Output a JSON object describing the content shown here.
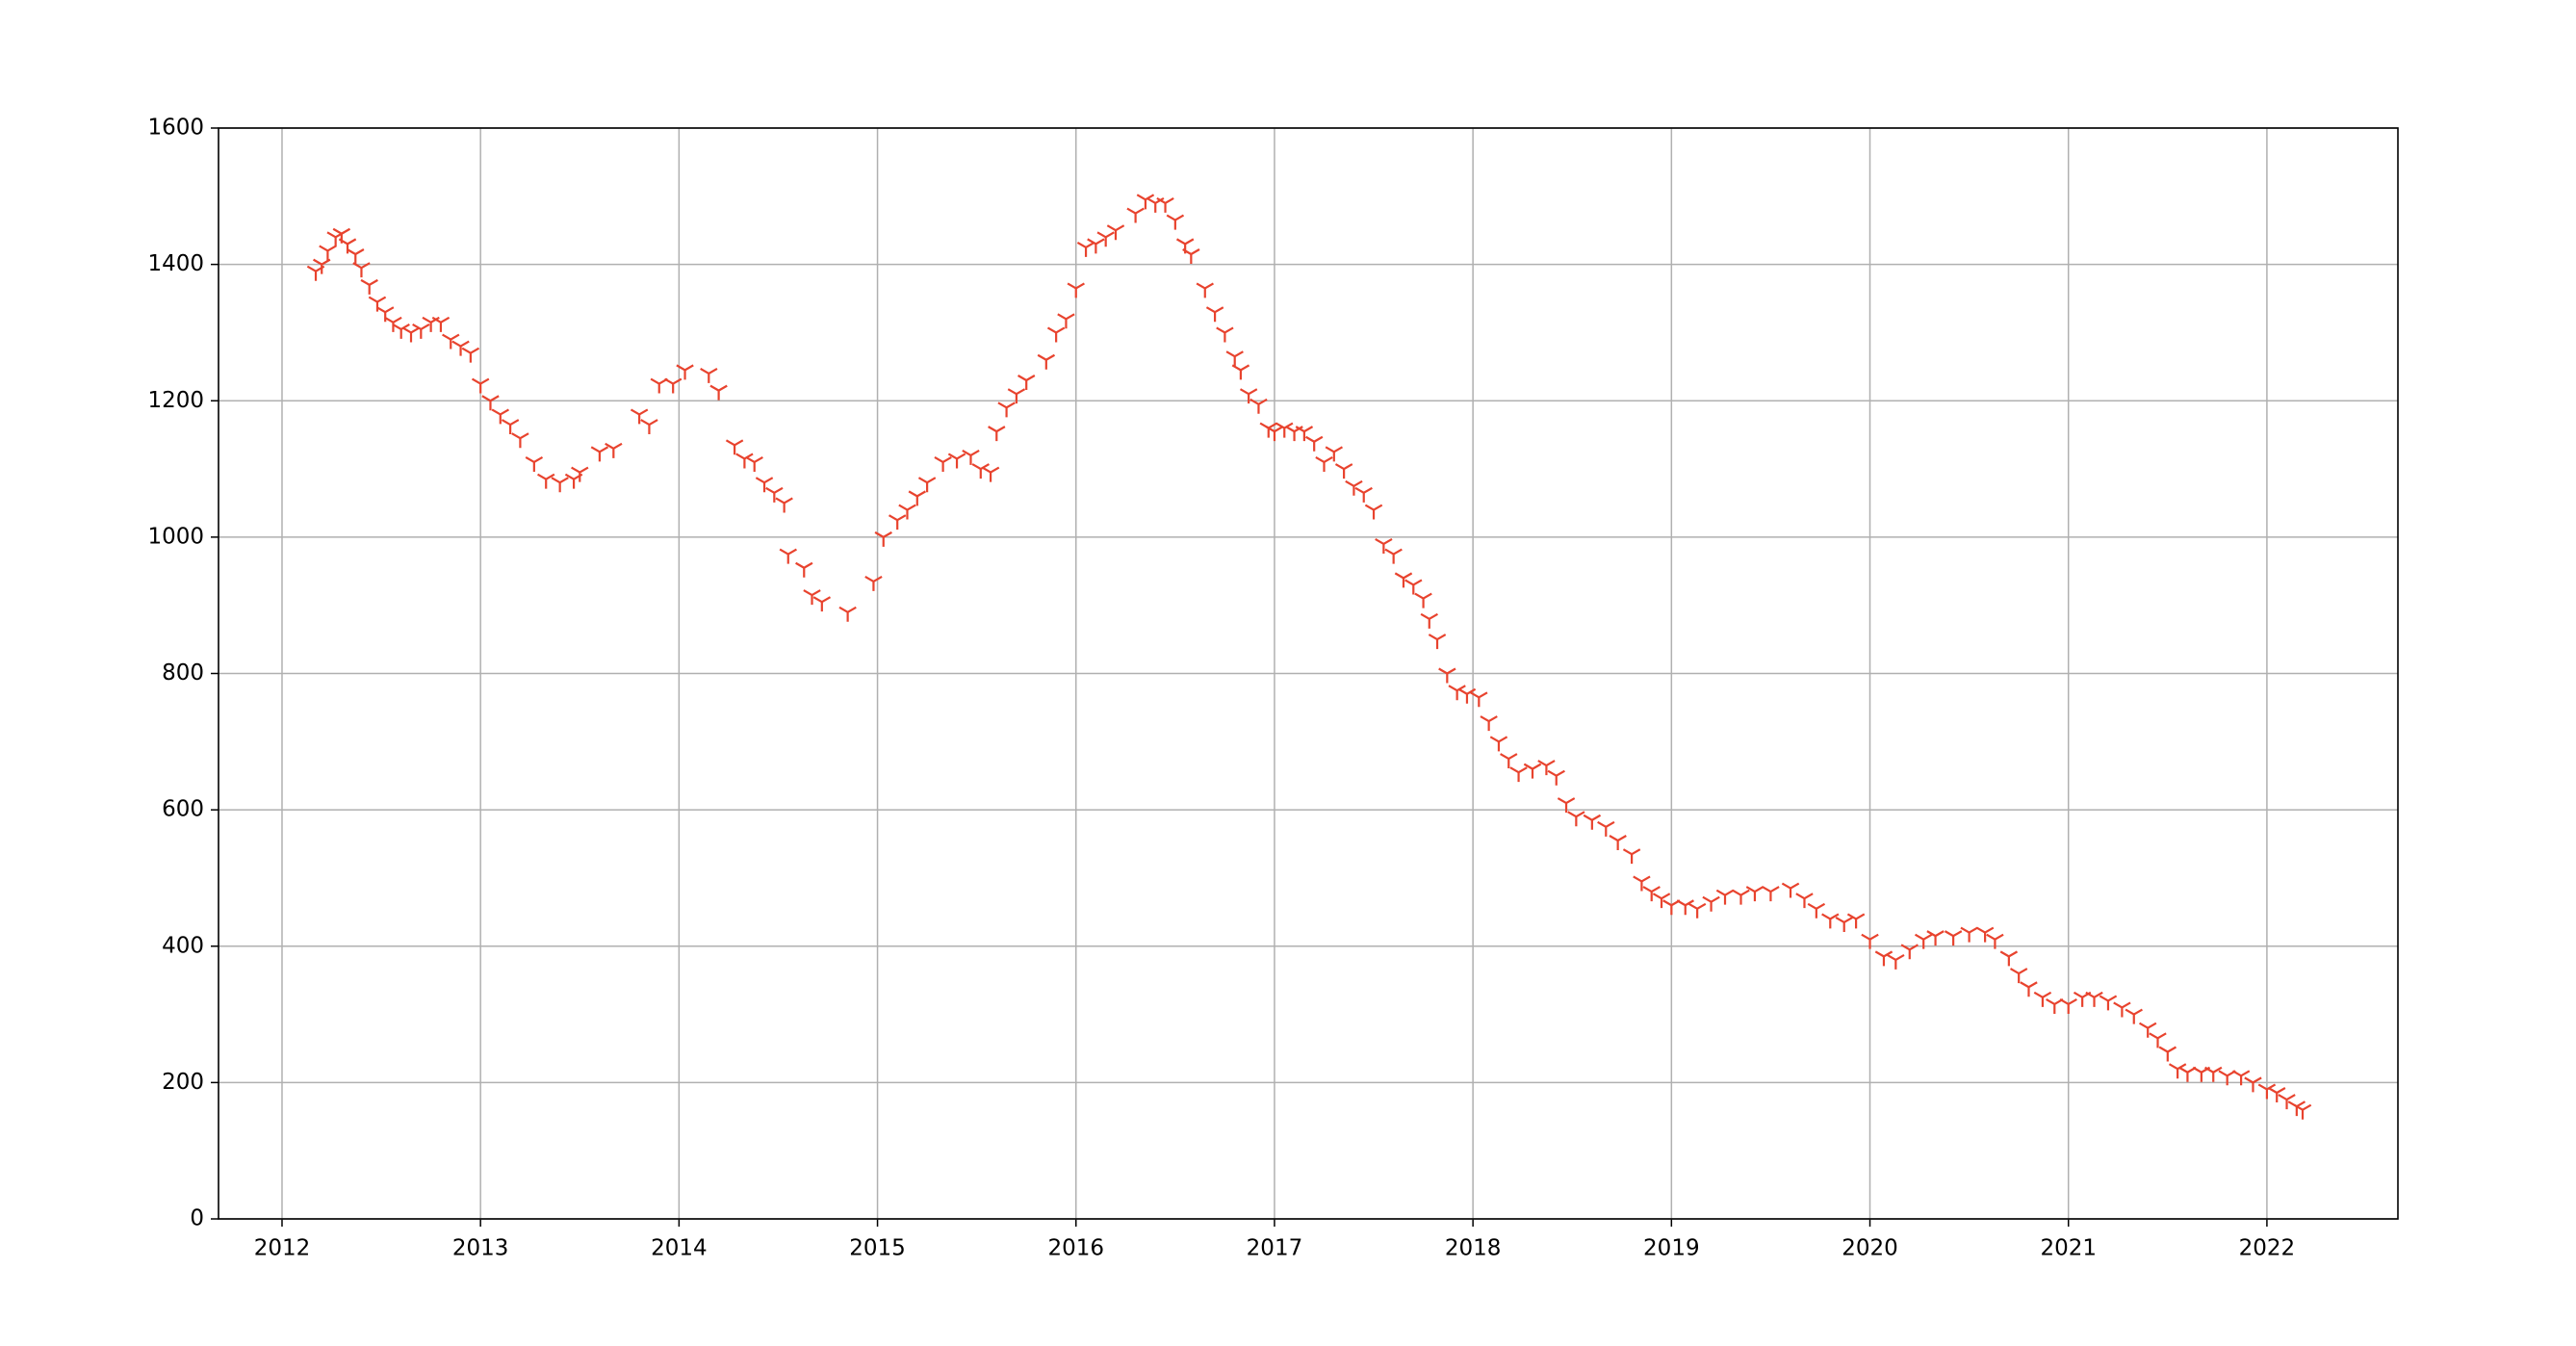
{
  "chart_data": {
    "type": "scatter",
    "color": "#e8432e",
    "marker": "tri_down",
    "grid": true,
    "xlim": [
      2011.68,
      2022.66
    ],
    "xticks": [
      2012,
      2013,
      2014,
      2015,
      2016,
      2017,
      2018,
      2019,
      2020,
      2021,
      2022
    ],
    "ylim": [
      0,
      1600
    ],
    "yticks": [
      0,
      200,
      400,
      600,
      800,
      1000,
      1200,
      1400,
      1600
    ],
    "x": [
      2012.17,
      2012.2,
      2012.23,
      2012.27,
      2012.3,
      2012.33,
      2012.37,
      2012.4,
      2012.44,
      2012.48,
      2012.52,
      2012.56,
      2012.6,
      2012.65,
      2012.7,
      2012.75,
      2012.8,
      2012.85,
      2012.9,
      2012.95,
      2013.0,
      2013.05,
      2013.1,
      2013.15,
      2013.2,
      2013.27,
      2013.33,
      2013.4,
      2013.47,
      2013.5,
      2013.6,
      2013.67,
      2013.8,
      2013.85,
      2013.9,
      2013.97,
      2014.03,
      2014.15,
      2014.2,
      2014.28,
      2014.33,
      2014.38,
      2014.43,
      2014.48,
      2014.53,
      2014.55,
      2014.63,
      2014.67,
      2014.72,
      2014.85,
      2014.98,
      2015.03,
      2015.1,
      2015.15,
      2015.2,
      2015.25,
      2015.33,
      2015.4,
      2015.47,
      2015.52,
      2015.57,
      2015.6,
      2015.65,
      2015.7,
      2015.75,
      2015.85,
      2015.9,
      2015.95,
      2016.0,
      2016.05,
      2016.1,
      2016.15,
      2016.2,
      2016.3,
      2016.35,
      2016.4,
      2016.45,
      2016.5,
      2016.55,
      2016.58,
      2016.65,
      2016.7,
      2016.75,
      2016.8,
      2016.83,
      2016.87,
      2016.92,
      2016.97,
      2017.0,
      2017.05,
      2017.1,
      2017.15,
      2017.2,
      2017.25,
      2017.3,
      2017.35,
      2017.4,
      2017.45,
      2017.5,
      2017.55,
      2017.6,
      2017.65,
      2017.7,
      2017.75,
      2017.78,
      2017.82,
      2017.87,
      2017.92,
      2017.97,
      2018.03,
      2018.08,
      2018.13,
      2018.18,
      2018.23,
      2018.3,
      2018.37,
      2018.42,
      2018.47,
      2018.52,
      2018.6,
      2018.67,
      2018.73,
      2018.8,
      2018.85,
      2018.9,
      2018.95,
      2019.0,
      2019.07,
      2019.13,
      2019.2,
      2019.27,
      2019.35,
      2019.42,
      2019.5,
      2019.6,
      2019.67,
      2019.73,
      2019.8,
      2019.87,
      2019.93,
      2020.0,
      2020.07,
      2020.13,
      2020.2,
      2020.27,
      2020.33,
      2020.42,
      2020.5,
      2020.58,
      2020.63,
      2020.7,
      2020.75,
      2020.8,
      2020.87,
      2020.93,
      2021.0,
      2021.07,
      2021.13,
      2021.2,
      2021.27,
      2021.33,
      2021.4,
      2021.45,
      2021.5,
      2021.55,
      2021.6,
      2021.67,
      2021.73,
      2021.8,
      2021.87,
      2021.93,
      2022.0,
      2022.05,
      2022.1,
      2022.15,
      2022.18
    ],
    "values": [
      1390,
      1400,
      1420,
      1440,
      1445,
      1430,
      1415,
      1395,
      1370,
      1345,
      1330,
      1315,
      1305,
      1300,
      1305,
      1315,
      1315,
      1290,
      1280,
      1270,
      1225,
      1200,
      1180,
      1165,
      1145,
      1110,
      1085,
      1080,
      1085,
      1095,
      1125,
      1130,
      1180,
      1165,
      1225,
      1225,
      1245,
      1240,
      1215,
      1135,
      1115,
      1110,
      1080,
      1065,
      1050,
      975,
      955,
      915,
      905,
      890,
      935,
      1000,
      1025,
      1040,
      1060,
      1080,
      1110,
      1115,
      1120,
      1100,
      1095,
      1155,
      1190,
      1210,
      1230,
      1260,
      1300,
      1320,
      1365,
      1425,
      1430,
      1440,
      1450,
      1475,
      1495,
      1490,
      1490,
      1465,
      1430,
      1415,
      1365,
      1330,
      1300,
      1265,
      1245,
      1210,
      1195,
      1160,
      1155,
      1160,
      1155,
      1155,
      1140,
      1110,
      1125,
      1100,
      1075,
      1065,
      1040,
      990,
      975,
      940,
      930,
      910,
      880,
      850,
      800,
      775,
      770,
      765,
      730,
      700,
      675,
      655,
      660,
      665,
      650,
      610,
      590,
      585,
      575,
      555,
      535,
      495,
      480,
      470,
      460,
      460,
      455,
      465,
      475,
      475,
      480,
      480,
      485,
      470,
      455,
      440,
      435,
      440,
      410,
      385,
      380,
      395,
      410,
      415,
      415,
      420,
      420,
      410,
      385,
      360,
      340,
      325,
      315,
      315,
      325,
      325,
      320,
      310,
      300,
      280,
      265,
      245,
      220,
      215,
      215,
      215,
      210,
      210,
      200,
      190,
      185,
      175,
      165,
      160
    ]
  }
}
